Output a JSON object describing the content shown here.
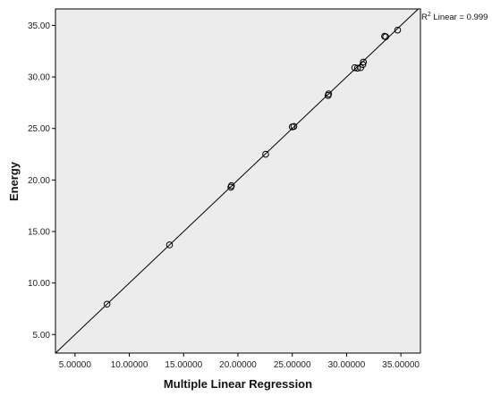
{
  "chart_data": {
    "type": "scatter",
    "xlabel": "Multiple Linear Regression",
    "ylabel": "Energy",
    "xlim": [
      3.2,
      36.8
    ],
    "ylim": [
      3.2,
      36.6
    ],
    "x_ticks": [
      "5.00000",
      "10.00000",
      "15.00000",
      "20.00000",
      "25.00000",
      "30.00000",
      "35.00000"
    ],
    "x_tick_values": [
      5,
      10,
      15,
      20,
      25,
      30,
      35
    ],
    "y_ticks": [
      "5.00",
      "10.00",
      "15.00",
      "20.00",
      "25.00",
      "30.00",
      "35.00"
    ],
    "y_tick_values": [
      5,
      10,
      15,
      20,
      25,
      30,
      35
    ],
    "fit_line": {
      "label_prefix": "R",
      "label_sup": "2",
      "label_suffix": " Linear = 0.999",
      "slope": 1.0,
      "intercept": 0.0
    },
    "plot_background": "#ececec",
    "marker_style": "open-circle",
    "grid": false,
    "points": [
      {
        "x": 7.95,
        "y": 7.95
      },
      {
        "x": 13.7,
        "y": 13.7
      },
      {
        "x": 19.35,
        "y": 19.3
      },
      {
        "x": 19.4,
        "y": 19.45
      },
      {
        "x": 22.55,
        "y": 22.5
      },
      {
        "x": 25.0,
        "y": 25.15
      },
      {
        "x": 25.15,
        "y": 25.2
      },
      {
        "x": 28.3,
        "y": 28.2
      },
      {
        "x": 28.35,
        "y": 28.35
      },
      {
        "x": 30.75,
        "y": 30.9
      },
      {
        "x": 31.0,
        "y": 30.85
      },
      {
        "x": 31.3,
        "y": 30.9
      },
      {
        "x": 31.5,
        "y": 31.2
      },
      {
        "x": 31.55,
        "y": 31.45
      },
      {
        "x": 33.5,
        "y": 33.95
      },
      {
        "x": 33.6,
        "y": 33.9
      },
      {
        "x": 34.7,
        "y": 34.55
      }
    ]
  }
}
